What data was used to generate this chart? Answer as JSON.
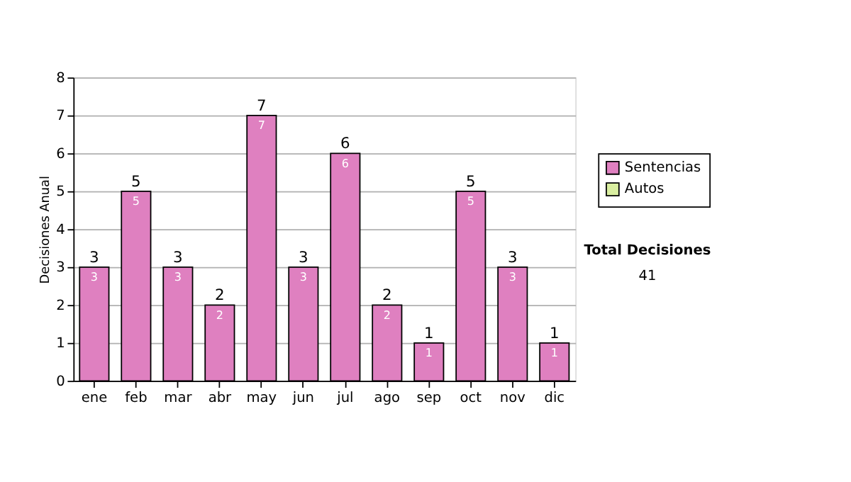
{
  "chart_data": {
    "type": "bar",
    "ylabel": "Decisiones Anual",
    "categories": [
      "ene",
      "feb",
      "mar",
      "abr",
      "may",
      "jun",
      "jul",
      "ago",
      "sep",
      "oct",
      "nov",
      "dic"
    ],
    "series": [
      {
        "name": "Sentencias",
        "color": "#df80c0",
        "values": [
          3,
          5,
          3,
          2,
          7,
          3,
          6,
          2,
          1,
          5,
          3,
          1
        ]
      },
      {
        "name": "Autos",
        "color": "#d9eea0",
        "values": [
          null,
          null,
          null,
          null,
          null,
          null,
          null,
          null,
          null,
          null,
          null,
          null
        ]
      }
    ],
    "stacked": true,
    "data_labels": true,
    "totals": [
      "3",
      "5",
      "3",
      "2",
      "7",
      "3",
      "6",
      "2",
      "1",
      "5",
      "3",
      "1"
    ],
    "ylim": [
      0,
      8
    ],
    "yticks": [
      0,
      1,
      2,
      3,
      4,
      5,
      6,
      7,
      8
    ],
    "grid": "y",
    "legend": "right",
    "annotations": [
      "Total Decisiones",
      "41"
    ]
  }
}
